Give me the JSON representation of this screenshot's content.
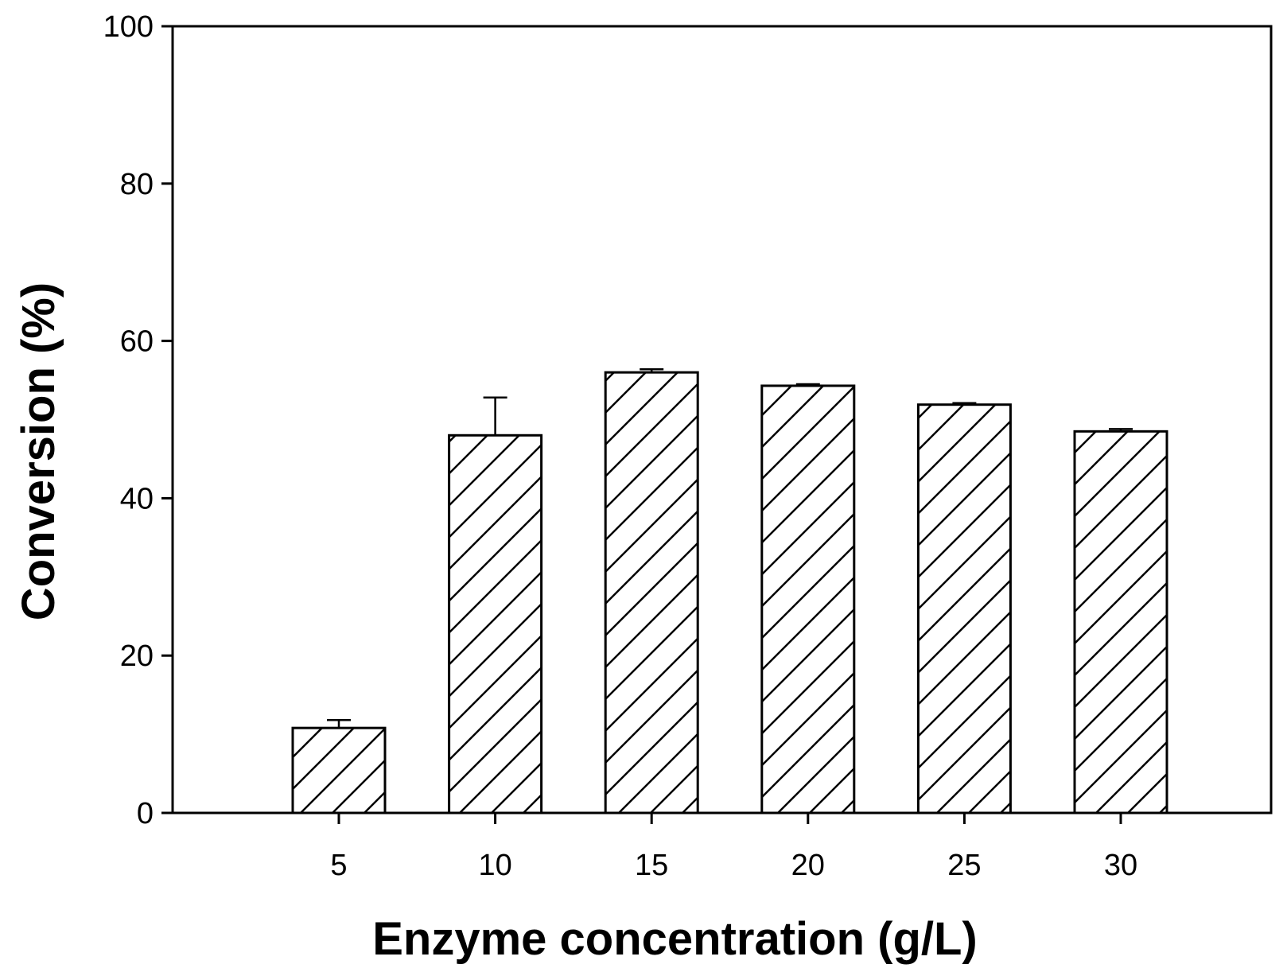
{
  "chart_data": {
    "type": "bar",
    "title": "",
    "xlabel": "Enzyme concentration (g/L)",
    "ylabel": "Conversion (%)",
    "categories": [
      "5",
      "10",
      "15",
      "20",
      "25",
      "30"
    ],
    "values": [
      10.8,
      48.0,
      56.0,
      54.3,
      51.9,
      48.5
    ],
    "errors": [
      1.0,
      4.8,
      0.4,
      0.2,
      0.2,
      0.3
    ],
    "ylim": [
      0,
      100
    ],
    "yticks": [
      0,
      20,
      40,
      60,
      80,
      100
    ],
    "bar_fill": "hatched (diagonal lines)",
    "bar_color": "#000000",
    "grid": false,
    "legend": "none"
  }
}
